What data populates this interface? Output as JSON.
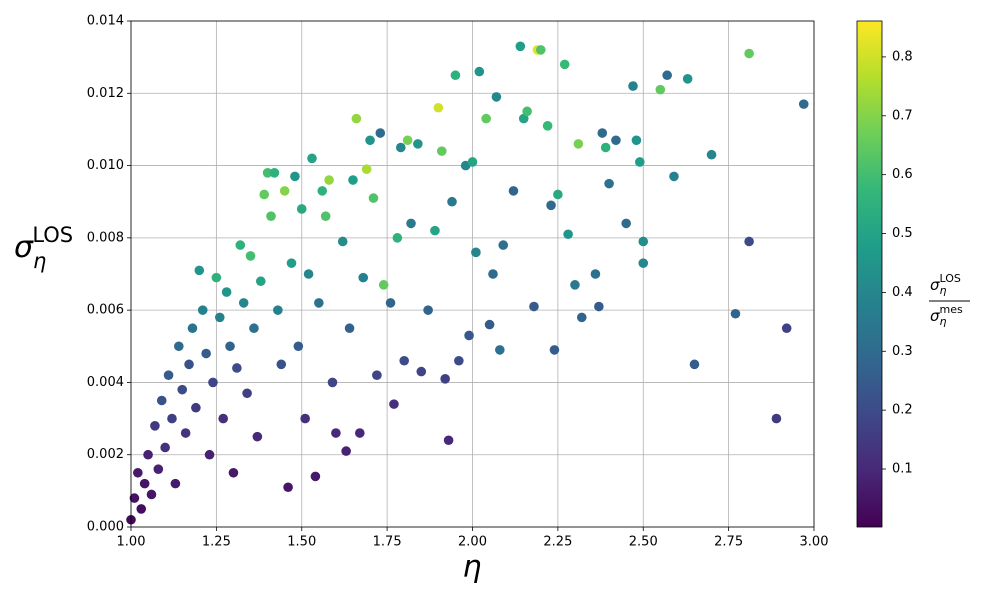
{
  "chart_data": {
    "type": "scatter",
    "x_label": "η",
    "y_label": [
      "σ",
      "η",
      "LOS"
    ],
    "colorbar_label": {
      "numerator": [
        "σ",
        "η",
        "LOS"
      ],
      "denominator": [
        "σ",
        "η",
        "mes"
      ]
    },
    "colormap": "viridis",
    "grid": true,
    "xlim": [
      1.0,
      3.0
    ],
    "ylim": [
      0,
      0.014
    ],
    "clim": [
      0.0015,
      0.861
    ],
    "xticks": [
      {
        "value": 1.0,
        "label": "1.00"
      },
      {
        "value": 1.25,
        "label": "1.25"
      },
      {
        "value": 1.5,
        "label": "1.50"
      },
      {
        "value": 1.75,
        "label": "1.75"
      },
      {
        "value": 2.0,
        "label": "2.00"
      },
      {
        "value": 2.25,
        "label": "2.25"
      },
      {
        "value": 2.5,
        "label": "2.50"
      },
      {
        "value": 2.75,
        "label": "2.75"
      },
      {
        "value": 3.0,
        "label": "3.00"
      }
    ],
    "yticks": [
      {
        "value": 0,
        "label": "0.000"
      },
      {
        "value": 0.002,
        "label": "0.002"
      },
      {
        "value": 0.004,
        "label": "0.004"
      },
      {
        "value": 0.006,
        "label": "0.006"
      },
      {
        "value": 0.008,
        "label": "0.008"
      },
      {
        "value": 0.01,
        "label": "0.010"
      },
      {
        "value": 0.012,
        "label": "0.012"
      },
      {
        "value": 0.014,
        "label": "0.014"
      }
    ],
    "cticks": [
      0.1,
      0.2,
      0.3,
      0.4,
      0.5,
      0.6,
      0.7,
      0.8
    ],
    "x": [
      1.0,
      1.01,
      1.02,
      1.03,
      1.04,
      1.05,
      1.06,
      1.07,
      1.08,
      1.09,
      1.1,
      1.11,
      1.12,
      1.13,
      1.14,
      1.15,
      1.16,
      1.17,
      1.18,
      1.19,
      1.2,
      1.21,
      1.22,
      1.23,
      1.24,
      1.25,
      1.26,
      1.27,
      1.28,
      1.29,
      1.3,
      1.31,
      1.32,
      1.33,
      1.34,
      1.35,
      1.36,
      1.37,
      1.38,
      1.39,
      1.4,
      1.41,
      1.42,
      1.43,
      1.44,
      1.45,
      1.46,
      1.47,
      1.48,
      1.49,
      1.5,
      1.51,
      1.52,
      1.53,
      1.54,
      1.55,
      1.56,
      1.57,
      1.58,
      1.59,
      1.6,
      1.62,
      1.63,
      1.64,
      1.65,
      1.66,
      1.67,
      1.68,
      1.69,
      1.7,
      1.71,
      1.72,
      1.73,
      1.74,
      1.76,
      1.77,
      1.78,
      1.79,
      1.8,
      1.81,
      1.82,
      1.84,
      1.85,
      1.87,
      1.89,
      1.9,
      1.91,
      1.92,
      1.93,
      1.94,
      1.95,
      1.96,
      1.98,
      1.99,
      2.0,
      2.01,
      2.02,
      2.04,
      2.05,
      2.06,
      2.07,
      2.08,
      2.09,
      2.12,
      2.14,
      2.15,
      2.16,
      2.18,
      2.19,
      2.2,
      2.22,
      2.23,
      2.24,
      2.25,
      2.27,
      2.28,
      2.3,
      2.31,
      2.32,
      2.36,
      2.37,
      2.38,
      2.39,
      2.4,
      2.42,
      2.45,
      2.47,
      2.48,
      2.49,
      2.5,
      2.5,
      2.55,
      2.57,
      2.59,
      2.63,
      2.65,
      2.7,
      2.77,
      2.81,
      2.81,
      2.89,
      2.92,
      2.97
    ],
    "y": [
      0.0002,
      0.0008,
      0.0015,
      0.0005,
      0.0012,
      0.002,
      0.0009,
      0.0028,
      0.0016,
      0.0035,
      0.0022,
      0.0042,
      0.003,
      0.0012,
      0.005,
      0.0038,
      0.0026,
      0.0045,
      0.0055,
      0.0033,
      0.0071,
      0.006,
      0.0048,
      0.002,
      0.004,
      0.0069,
      0.0058,
      0.003,
      0.0065,
      0.005,
      0.0015,
      0.0044,
      0.0078,
      0.0062,
      0.0037,
      0.0075,
      0.0055,
      0.0025,
      0.0068,
      0.0092,
      0.0098,
      0.0086,
      0.0098,
      0.006,
      0.0045,
      0.0093,
      0.0011,
      0.0073,
      0.0097,
      0.005,
      0.0088,
      0.003,
      0.007,
      0.0102,
      0.0014,
      0.0062,
      0.0093,
      0.0086,
      0.0096,
      0.004,
      0.0026,
      0.0079,
      0.0021,
      0.0055,
      0.0096,
      0.0113,
      0.0026,
      0.0069,
      0.0099,
      0.0107,
      0.0091,
      0.0042,
      0.0109,
      0.0067,
      0.0062,
      0.0034,
      0.008,
      0.0105,
      0.0046,
      0.0107,
      0.0084,
      0.0106,
      0.0043,
      0.006,
      0.0082,
      0.0116,
      0.0104,
      0.0041,
      0.0024,
      0.009,
      0.0125,
      0.0046,
      0.01,
      0.0053,
      0.0101,
      0.0076,
      0.0126,
      0.0113,
      0.0056,
      0.007,
      0.0119,
      0.0049,
      0.0078,
      0.0093,
      0.0133,
      0.0113,
      0.0115,
      0.0061,
      0.0132,
      0.0132,
      0.0111,
      0.0089,
      0.0049,
      0.0092,
      0.0128,
      0.0081,
      0.0067,
      0.0106,
      0.0058,
      0.007,
      0.0061,
      0.0109,
      0.0105,
      0.0095,
      0.0107,
      0.0084,
      0.0122,
      0.0107,
      0.0101,
      0.0079,
      0.0073,
      0.0121,
      0.0125,
      0.0097,
      0.0124,
      0.0045,
      0.0103,
      0.0059,
      0.0131,
      0.0079,
      0.003,
      0.0055,
      0.0117
    ],
    "c": [
      0.02,
      0.04,
      0.06,
      0.03,
      0.05,
      0.08,
      0.05,
      0.15,
      0.08,
      0.22,
      0.12,
      0.25,
      0.17,
      0.06,
      0.3,
      0.2,
      0.13,
      0.22,
      0.33,
      0.15,
      0.45,
      0.38,
      0.25,
      0.08,
      0.18,
      0.55,
      0.38,
      0.12,
      0.45,
      0.27,
      0.06,
      0.2,
      0.55,
      0.4,
      0.16,
      0.6,
      0.32,
      0.1,
      0.5,
      0.65,
      0.6,
      0.62,
      0.55,
      0.38,
      0.22,
      0.7,
      0.05,
      0.48,
      0.45,
      0.25,
      0.52,
      0.12,
      0.4,
      0.5,
      0.06,
      0.32,
      0.55,
      0.62,
      0.72,
      0.18,
      0.1,
      0.42,
      0.08,
      0.27,
      0.48,
      0.72,
      0.1,
      0.38,
      0.75,
      0.45,
      0.62,
      0.18,
      0.3,
      0.65,
      0.28,
      0.12,
      0.55,
      0.4,
      0.2,
      0.68,
      0.35,
      0.45,
      0.18,
      0.28,
      0.5,
      0.8,
      0.65,
      0.17,
      0.1,
      0.35,
      0.55,
      0.2,
      0.4,
      0.24,
      0.5,
      0.4,
      0.45,
      0.65,
      0.25,
      0.3,
      0.4,
      0.32,
      0.32,
      0.28,
      0.48,
      0.5,
      0.6,
      0.25,
      0.82,
      0.62,
      0.58,
      0.3,
      0.25,
      0.52,
      0.58,
      0.45,
      0.35,
      0.68,
      0.28,
      0.32,
      0.25,
      0.3,
      0.55,
      0.32,
      0.3,
      0.3,
      0.38,
      0.45,
      0.48,
      0.42,
      0.4,
      0.65,
      0.3,
      0.38,
      0.45,
      0.25,
      0.4,
      0.28,
      0.65,
      0.2,
      0.15,
      0.17,
      0.3
    ]
  }
}
